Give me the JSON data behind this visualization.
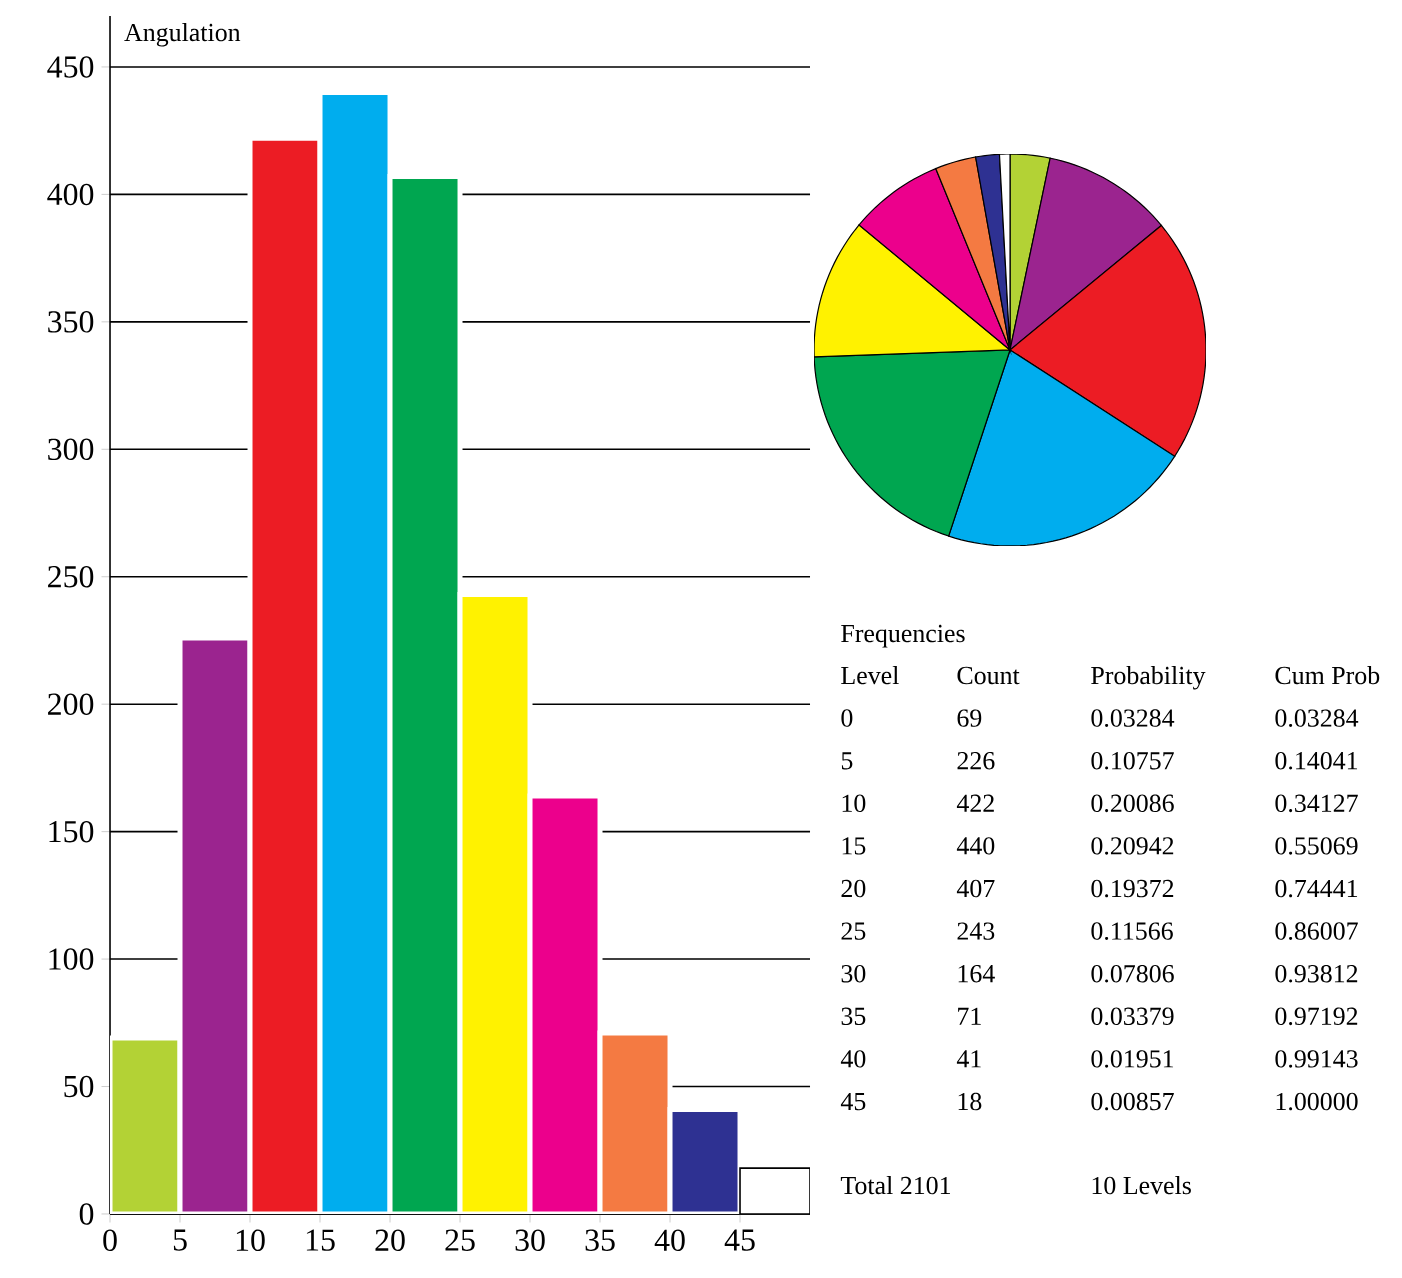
{
  "chart_data": [
    {
      "type": "histogram",
      "title": "Angulation",
      "bins": [
        0,
        5,
        10,
        15,
        20,
        25,
        30,
        35,
        40,
        45,
        50
      ],
      "values": [
        69,
        226,
        422,
        440,
        407,
        243,
        164,
        71,
        41,
        18
      ],
      "colors": [
        "#b3d235",
        "#9b248f",
        "#ec1c24",
        "#00adee",
        "#00a650",
        "#fff200",
        "#ec008c",
        "#f47a42",
        "#2e3192",
        "#ffffff"
      ],
      "xlim": [
        0,
        50
      ],
      "xticks": [
        0,
        5,
        10,
        15,
        20,
        25,
        30,
        35,
        40,
        45
      ],
      "ylim": [
        0,
        470
      ],
      "yticks": [
        0,
        50,
        100,
        150,
        200,
        250,
        300,
        350,
        400,
        450
      ],
      "grid": "y",
      "annotations": [
        "Frequencies",
        "Level",
        "Count",
        "Probability",
        "Cum Prob",
        "0",
        "69",
        "0.03284",
        "0.03284",
        "5",
        "226",
        "0.10757",
        "0.14041",
        "10",
        "422",
        "0.20086",
        "0.34127",
        "15",
        "440",
        "0.20942",
        "0.55069",
        "20",
        "407",
        "0.19372",
        "0.74441",
        "25",
        "243",
        "0.11566",
        "0.86007",
        "30",
        "164",
        "0.07806",
        "0.93812",
        "35",
        "71",
        "0.03379",
        "0.97192",
        "40",
        "41",
        "0.01951",
        "0.99143",
        "45",
        "18",
        "0.00857",
        "1.00000",
        "Total 2101",
        "10 Levels"
      ]
    },
    {
      "type": "pie",
      "categories": [
        null,
        null,
        null,
        null,
        null,
        null,
        null,
        null,
        null,
        null
      ],
      "values": [
        3.284,
        10.757,
        20.086,
        20.942,
        19.372,
        11.566,
        7.806,
        3.379,
        1.951,
        0.857
      ],
      "colors": [
        "#b3d235",
        "#9b248f",
        "#ec1c24",
        "#00adee",
        "#00a650",
        "#fff200",
        "#ec008c",
        "#f47a42",
        "#2e3192",
        "#ffffff"
      ]
    }
  ]
}
